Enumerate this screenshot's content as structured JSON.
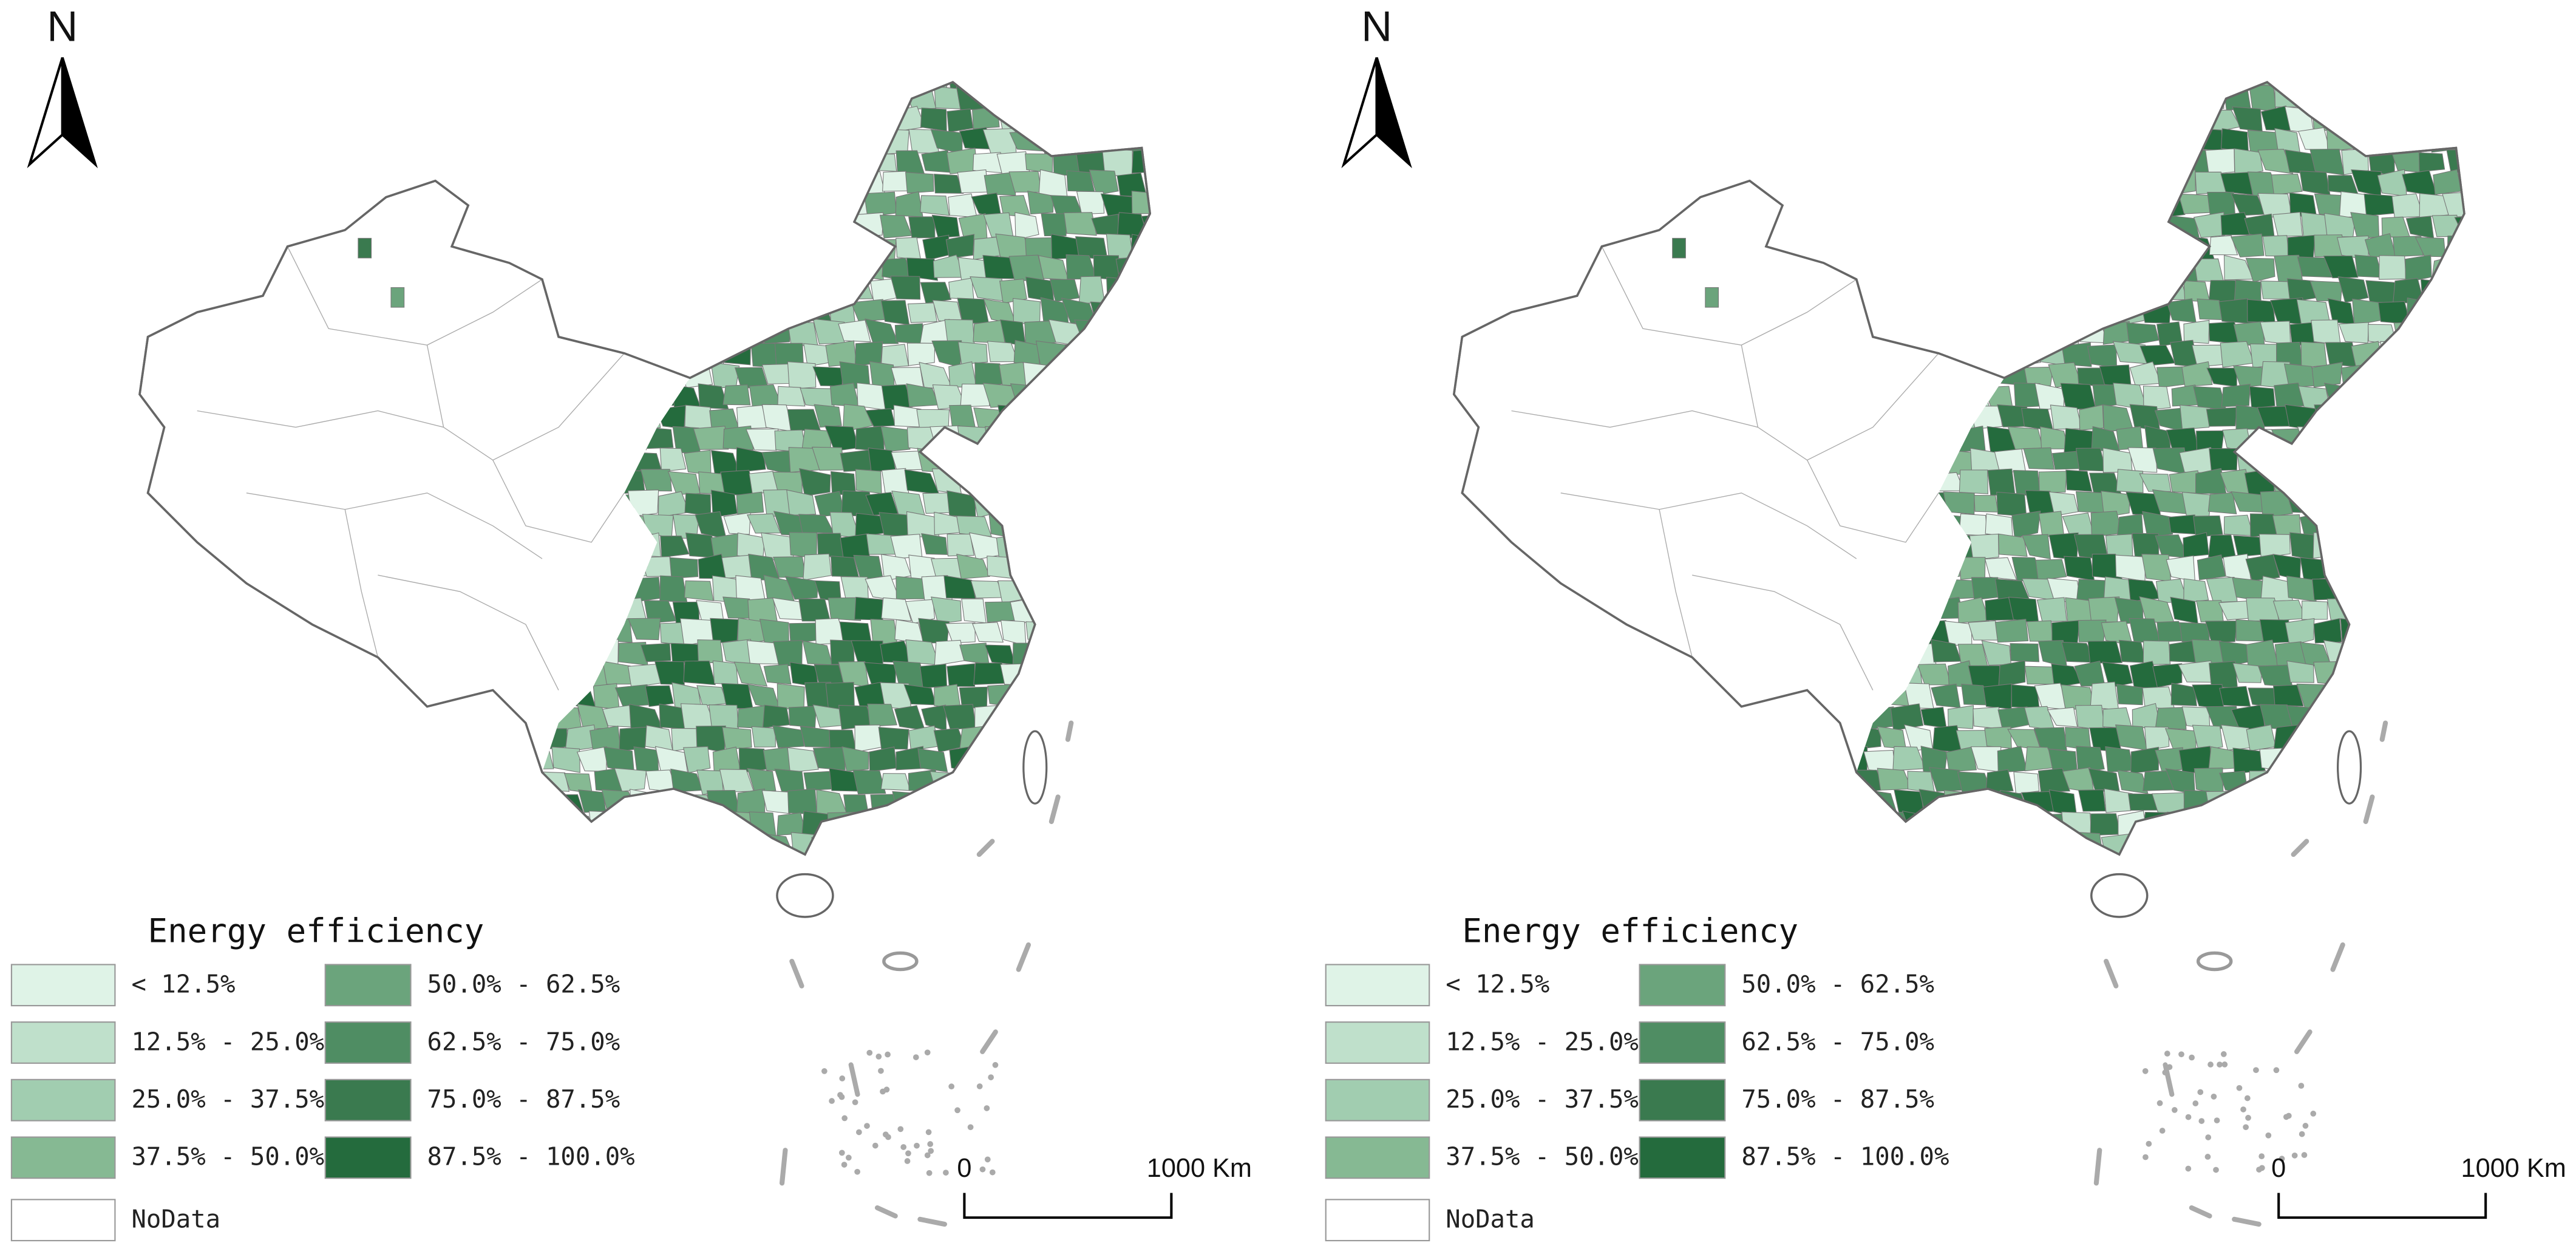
{
  "panels": [
    {
      "north": "N",
      "legend": {
        "title": "Energy efficiency",
        "items": [
          {
            "label": "< 12.5%",
            "color": "#dff3e7"
          },
          {
            "label": "12.5% - 25.0%",
            "color": "#bfe0cb"
          },
          {
            "label": "25.0% - 37.5%",
            "color": "#a1cdb0"
          },
          {
            "label": "37.5% - 50.0%",
            "color": "#86b993"
          },
          {
            "label": "50.0% - 62.5%",
            "color": "#6ba47c"
          },
          {
            "label": "62.5% - 75.0%",
            "color": "#4f8d63"
          },
          {
            "label": "75.0% - 87.5%",
            "color": "#3a7a4f"
          },
          {
            "label": "87.5% - 100.0%",
            "color": "#246b3d"
          },
          {
            "label": "NoData",
            "color": "#ffffff"
          }
        ]
      },
      "scale_bar": {
        "labels": [
          "0",
          "1000 Km"
        ]
      }
    },
    {
      "north": "N",
      "legend": {
        "title": "Energy efficiency",
        "items": [
          {
            "label": "< 12.5%",
            "color": "#dff3e7"
          },
          {
            "label": "12.5% - 25.0%",
            "color": "#bfe0cb"
          },
          {
            "label": "25.0% - 37.5%",
            "color": "#a1cdb0"
          },
          {
            "label": "37.5% - 50.0%",
            "color": "#86b993"
          },
          {
            "label": "50.0% - 62.5%",
            "color": "#6ba47c"
          },
          {
            "label": "62.5% - 75.0%",
            "color": "#4f8d63"
          },
          {
            "label": "75.0% - 87.5%",
            "color": "#3a7a4f"
          },
          {
            "label": "87.5% - 100.0%",
            "color": "#246b3d"
          },
          {
            "label": "NoData",
            "color": "#ffffff"
          }
        ]
      },
      "scale_bar": {
        "labels": [
          "0",
          "1000 Km"
        ]
      }
    }
  ]
}
